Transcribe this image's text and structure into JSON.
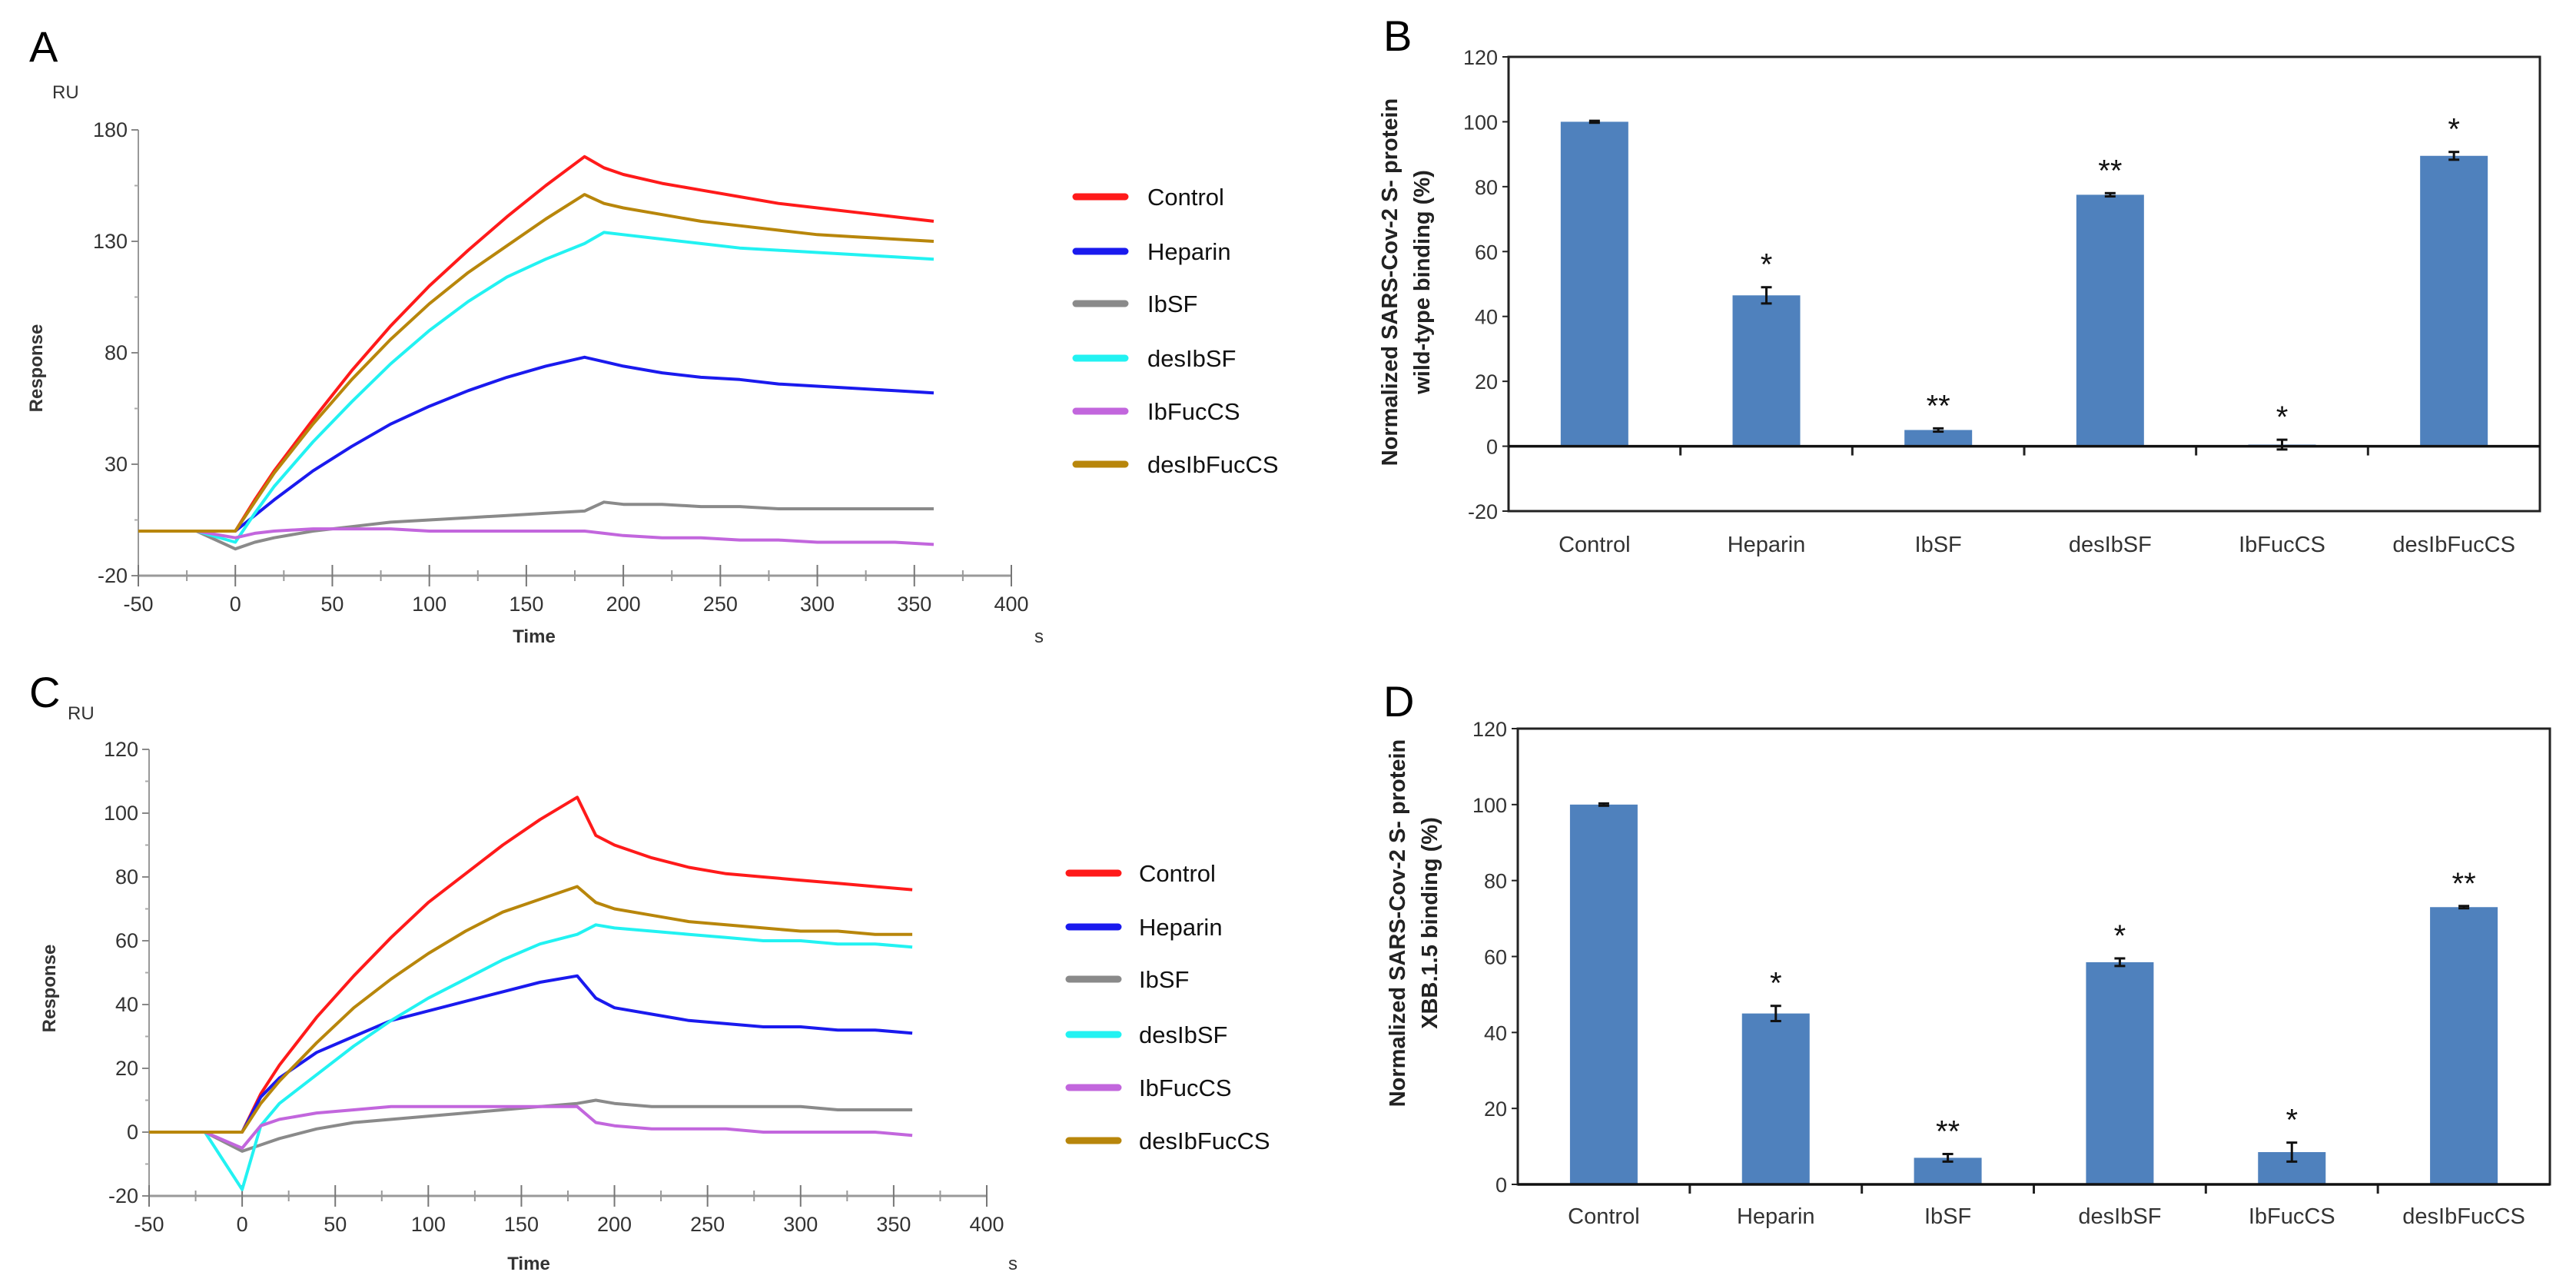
{
  "colors": {
    "Control": "#ff1a1a",
    "Heparin": "#1a1aee",
    "IbSF": "#8a8a8a",
    "desIbSF": "#22f2f2",
    "IbFucCS": "#c266dd",
    "desIbFucCS": "#b8860b",
    "bar": "#4f81bd"
  },
  "chart_data": [
    {
      "panel": "A",
      "type": "line",
      "unit_label": "RU",
      "ylabel": "Response",
      "xlabel": "Time",
      "x_unit": "s",
      "xlim": [
        -50,
        400
      ],
      "ylim": [
        -20,
        180
      ],
      "xticks": [
        -50,
        0,
        50,
        100,
        150,
        200,
        250,
        300,
        350,
        400
      ],
      "yticks": [
        -20,
        30,
        80,
        130,
        180
      ],
      "legend": "right",
      "x": [
        -50,
        -20,
        0,
        10,
        20,
        40,
        60,
        80,
        100,
        120,
        140,
        160,
        180,
        190,
        200,
        220,
        240,
        260,
        280,
        300,
        320,
        340,
        360
      ],
      "series": [
        {
          "name": "Control",
          "values": [
            0,
            0,
            0,
            14,
            27,
            50,
            72,
            92,
            110,
            126,
            141,
            155,
            168,
            163,
            160,
            156,
            153,
            150,
            147,
            145,
            143,
            141,
            139
          ]
        },
        {
          "name": "Heparin",
          "values": [
            0,
            0,
            0,
            7,
            14,
            27,
            38,
            48,
            56,
            63,
            69,
            74,
            78,
            76,
            74,
            71,
            69,
            68,
            66,
            65,
            64,
            63,
            62
          ]
        },
        {
          "name": "IbSF",
          "values": [
            0,
            0,
            -8,
            -5,
            -3,
            0,
            2,
            4,
            5,
            6,
            7,
            8,
            9,
            13,
            12,
            12,
            11,
            11,
            10,
            10,
            10,
            10,
            10
          ]
        },
        {
          "name": "desIbSF",
          "values": [
            0,
            0,
            -5,
            8,
            20,
            40,
            58,
            75,
            90,
            103,
            114,
            122,
            129,
            134,
            133,
            131,
            129,
            127,
            126,
            125,
            124,
            123,
            122
          ]
        },
        {
          "name": "IbFucCS",
          "values": [
            0,
            0,
            -3,
            -1,
            0,
            1,
            1,
            1,
            0,
            0,
            0,
            0,
            0,
            -1,
            -2,
            -3,
            -3,
            -4,
            -4,
            -5,
            -5,
            -5,
            -6
          ]
        },
        {
          "name": "desIbFucCS",
          "values": [
            0,
            0,
            0,
            13,
            26,
            48,
            68,
            86,
            102,
            116,
            128,
            140,
            151,
            147,
            145,
            142,
            139,
            137,
            135,
            133,
            132,
            131,
            130
          ]
        }
      ]
    },
    {
      "panel": "B",
      "type": "bar",
      "ylabel": [
        "Normalized SARS-Cov-2 S- protein",
        "wild-type binding (%)"
      ],
      "ylim": [
        -20,
        120
      ],
      "yticks": [
        -20,
        0,
        20,
        40,
        60,
        80,
        100,
        120
      ],
      "categories": [
        "Control",
        "Heparin",
        "IbSF",
        "desIbSF",
        "IbFucCS",
        "desIbFucCS"
      ],
      "values": [
        100,
        46.5,
        5,
        77.5,
        0.5,
        89.5
      ],
      "errors": [
        0.3,
        2.5,
        0.5,
        0.5,
        1.5,
        1.2
      ],
      "significance": [
        "",
        "*",
        "**",
        "**",
        "*",
        "*"
      ]
    },
    {
      "panel": "C",
      "type": "line",
      "unit_label": "RU",
      "ylabel": "Response",
      "xlabel": "Time",
      "x_unit": "s",
      "xlim": [
        -50,
        400
      ],
      "ylim": [
        -20,
        120
      ],
      "xticks": [
        -50,
        0,
        50,
        100,
        150,
        200,
        250,
        300,
        350,
        400
      ],
      "yticks": [
        -20,
        0,
        20,
        40,
        60,
        80,
        100,
        120
      ],
      "legend": "right",
      "x": [
        -50,
        -20,
        0,
        10,
        20,
        40,
        60,
        80,
        100,
        120,
        140,
        160,
        180,
        190,
        200,
        220,
        240,
        260,
        280,
        300,
        320,
        340,
        360
      ],
      "series": [
        {
          "name": "Control",
          "values": [
            0,
            0,
            0,
            12,
            21,
            36,
            49,
            61,
            72,
            81,
            90,
            98,
            105,
            93,
            90,
            86,
            83,
            81,
            80,
            79,
            78,
            77,
            76
          ]
        },
        {
          "name": "Heparin",
          "values": [
            0,
            0,
            0,
            11,
            17,
            25,
            30,
            35,
            38,
            41,
            44,
            47,
            49,
            42,
            39,
            37,
            35,
            34,
            33,
            33,
            32,
            32,
            31
          ]
        },
        {
          "name": "IbSF",
          "values": [
            0,
            0,
            -6,
            -4,
            -2,
            1,
            3,
            4,
            5,
            6,
            7,
            8,
            9,
            10,
            9,
            8,
            8,
            8,
            8,
            8,
            7,
            7,
            7
          ]
        },
        {
          "name": "desIbSF",
          "values": [
            0,
            0,
            -18,
            2,
            9,
            18,
            27,
            35,
            42,
            48,
            54,
            59,
            62,
            65,
            64,
            63,
            62,
            61,
            60,
            60,
            59,
            59,
            58
          ]
        },
        {
          "name": "IbFucCS",
          "values": [
            0,
            0,
            -5,
            2,
            4,
            6,
            7,
            8,
            8,
            8,
            8,
            8,
            8,
            3,
            2,
            1,
            1,
            1,
            0,
            0,
            0,
            0,
            -1
          ]
        },
        {
          "name": "desIbFucCS",
          "values": [
            0,
            0,
            0,
            9,
            16,
            28,
            39,
            48,
            56,
            63,
            69,
            73,
            77,
            72,
            70,
            68,
            66,
            65,
            64,
            63,
            63,
            62,
            62
          ]
        }
      ]
    },
    {
      "panel": "D",
      "type": "bar",
      "ylabel": [
        "Normalized SARS-Cov-2 S- protein",
        "XBB.1.5 binding (%)"
      ],
      "ylim": [
        0,
        120
      ],
      "yticks": [
        0,
        20,
        40,
        60,
        80,
        100,
        120
      ],
      "categories": [
        "Control",
        "Heparin",
        "IbSF",
        "desIbSF",
        "IbFucCS",
        "desIbFucCS"
      ],
      "values": [
        100,
        45,
        7,
        58.5,
        8.5,
        73
      ],
      "errors": [
        0.3,
        2,
        1,
        1,
        2.5,
        0.3
      ],
      "significance": [
        "",
        "*",
        "**",
        "*",
        "*",
        "**"
      ]
    }
  ]
}
